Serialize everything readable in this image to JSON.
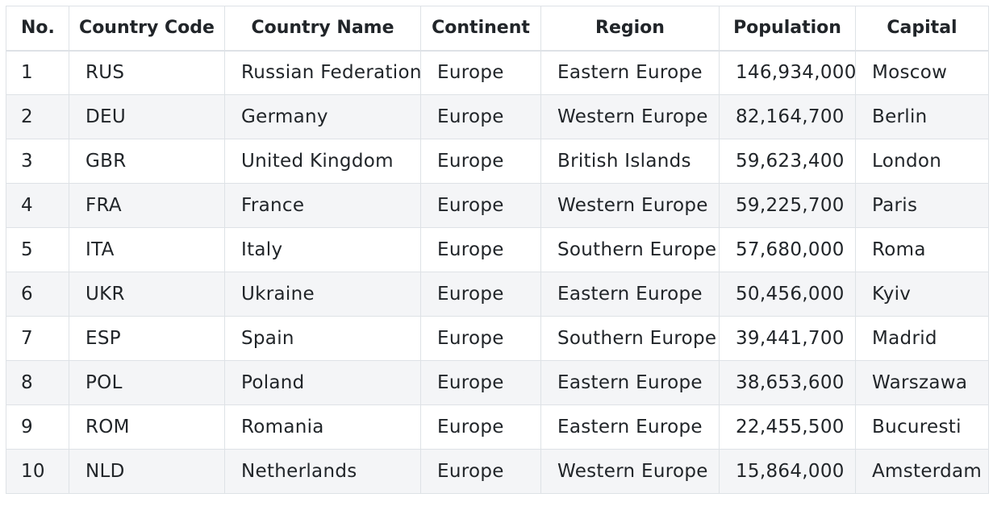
{
  "table": {
    "columns": [
      "No.",
      "Country Code",
      "Country Name",
      "Continent",
      "Region",
      "Population",
      "Capital"
    ],
    "rows": [
      [
        "1",
        "RUS",
        "Russian Federation",
        "Europe",
        "Eastern Europe",
        "146,934,000",
        "Moscow"
      ],
      [
        "2",
        "DEU",
        "Germany",
        "Europe",
        "Western Europe",
        "82,164,700",
        "Berlin"
      ],
      [
        "3",
        "GBR",
        "United Kingdom",
        "Europe",
        "British Islands",
        "59,623,400",
        "London"
      ],
      [
        "4",
        "FRA",
        "France",
        "Europe",
        "Western Europe",
        "59,225,700",
        "Paris"
      ],
      [
        "5",
        "ITA",
        "Italy",
        "Europe",
        "Southern Europe",
        "57,680,000",
        "Roma"
      ],
      [
        "6",
        "UKR",
        "Ukraine",
        "Europe",
        "Eastern Europe",
        "50,456,000",
        "Kyiv"
      ],
      [
        "7",
        "ESP",
        "Spain",
        "Europe",
        "Southern Europe",
        "39,441,700",
        "Madrid"
      ],
      [
        "8",
        "POL",
        "Poland",
        "Europe",
        "Eastern Europe",
        "38,653,600",
        "Warszawa"
      ],
      [
        "9",
        "ROM",
        "Romania",
        "Europe",
        "Eastern Europe",
        "22,455,500",
        "Bucuresti"
      ],
      [
        "10",
        "NLD",
        "Netherlands",
        "Europe",
        "Western Europe",
        "15,864,000",
        "Amsterdam"
      ]
    ]
  },
  "colors": {
    "border": "#dee2e6",
    "stripe": "#f4f5f7",
    "text": "#212529"
  }
}
